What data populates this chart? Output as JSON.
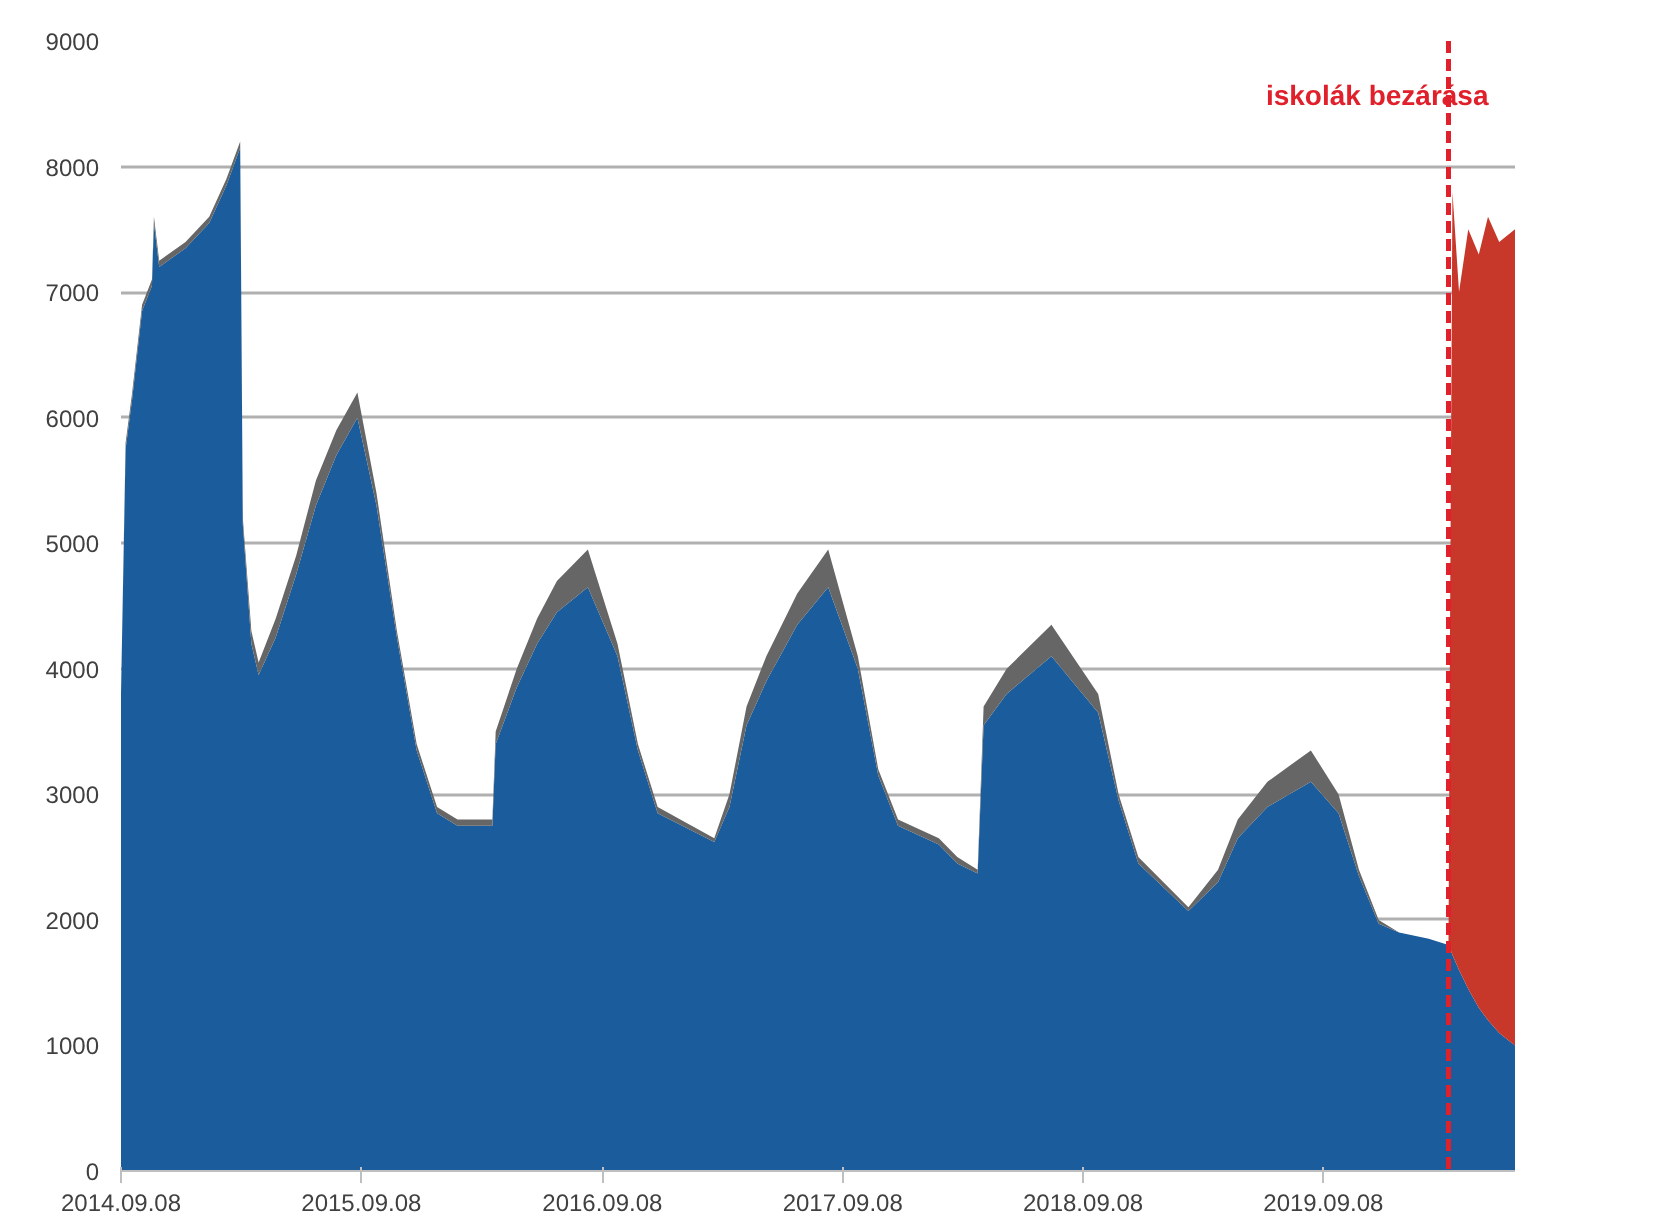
{
  "chart_data": {
    "type": "area",
    "stacked": true,
    "grid": "y",
    "x": [
      "2014-09-08",
      "2014-09-15",
      "2014-09-25",
      "2014-10-10",
      "2014-10-25",
      "2014-10-28",
      "2014-11-05",
      "2014-12-15",
      "2015-01-20",
      "2015-02-15",
      "2015-03-08",
      "2015-03-12",
      "2015-03-25",
      "2015-04-05",
      "2015-05-01",
      "2015-06-01",
      "2015-07-01",
      "2015-08-01",
      "2015-09-02",
      "2015-10-01",
      "2015-11-01",
      "2015-12-01",
      "2016-01-01",
      "2016-02-01",
      "2016-03-25",
      "2016-03-30",
      "2016-05-01",
      "2016-06-01",
      "2016-07-01",
      "2016-08-17",
      "2016-10-01",
      "2016-11-01",
      "2016-12-01",
      "2017-02-25",
      "2017-03-20",
      "2017-04-15",
      "2017-05-15",
      "2017-07-01",
      "2017-08-17",
      "2017-10-01",
      "2017-11-01",
      "2017-12-01",
      "2018-02-01",
      "2018-03-01",
      "2018-04-01",
      "2018-04-10",
      "2018-05-15",
      "2018-07-22",
      "2018-10-01",
      "2018-11-01",
      "2018-12-01",
      "2019-02-15",
      "2019-04-01",
      "2019-05-01",
      "2019-06-15",
      "2019-08-20",
      "2019-10-01",
      "2019-11-01",
      "2019-12-01",
      "2020-01-01",
      "2020-02-15",
      "2020-03-16",
      "2020-03-18",
      "2020-03-22",
      "2020-04-01",
      "2020-04-15",
      "2020-05-01",
      "2020-05-15",
      "2020-06-01",
      "2020-06-25"
    ],
    "series": [
      {
        "color": "#1a5c9c",
        "values": [
          3800,
          5750,
          6150,
          6850,
          7050,
          7550,
          7200,
          7350,
          7550,
          7850,
          8150,
          5150,
          4200,
          3950,
          4250,
          4750,
          5300,
          5700,
          6000,
          5300,
          4250,
          3350,
          2850,
          2750,
          2750,
          3400,
          3850,
          4200,
          4450,
          4650,
          4100,
          3350,
          2850,
          2620,
          2900,
          3550,
          3900,
          4350,
          4650,
          4000,
          3150,
          2750,
          2600,
          2450,
          2370,
          3550,
          3800,
          4100,
          3650,
          2950,
          2450,
          2070,
          2300,
          2650,
          2900,
          3100,
          2850,
          2350,
          1970,
          1900,
          1850,
          1800,
          1780,
          1720,
          1600,
          1450,
          1300,
          1200,
          1100,
          1000
        ]
      },
      {
        "color": "#666666",
        "values": [
          0,
          50,
          50,
          50,
          50,
          50,
          50,
          50,
          50,
          50,
          50,
          50,
          100,
          100,
          150,
          150,
          200,
          200,
          200,
          100,
          50,
          50,
          50,
          50,
          50,
          100,
          150,
          200,
          250,
          300,
          100,
          50,
          50,
          30,
          100,
          150,
          200,
          250,
          300,
          100,
          50,
          50,
          50,
          50,
          30,
          150,
          200,
          250,
          150,
          50,
          50,
          30,
          100,
          150,
          200,
          250,
          150,
          50,
          30,
          0,
          0,
          0,
          null,
          null,
          null,
          null,
          null,
          null,
          null,
          null
        ]
      },
      {
        "color": "#c8382a",
        "values": [
          null,
          null,
          null,
          null,
          null,
          null,
          null,
          null,
          null,
          null,
          null,
          null,
          null,
          null,
          null,
          null,
          null,
          null,
          null,
          null,
          null,
          null,
          null,
          null,
          null,
          null,
          null,
          null,
          null,
          null,
          null,
          null,
          null,
          null,
          null,
          null,
          null,
          null,
          null,
          null,
          null,
          null,
          null,
          null,
          null,
          null,
          null,
          null,
          null,
          null,
          null,
          null,
          null,
          null,
          null,
          null,
          null,
          null,
          null,
          null,
          null,
          0,
          2220,
          6080,
          5400,
          6050,
          6000,
          6400,
          6300,
          6500
        ]
      }
    ],
    "xlim": [
      "2014-09-08",
      "2020-06-25"
    ],
    "ylim": [
      0,
      9000
    ],
    "xticks": [
      {
        "value": "2014-09-08",
        "label": "2014.09.08"
      },
      {
        "value": "2015-09-08",
        "label": "2015.09.08"
      },
      {
        "value": "2016-09-08",
        "label": "2016.09.08"
      },
      {
        "value": "2017-09-08",
        "label": "2017.09.08"
      },
      {
        "value": "2018-09-08",
        "label": "2018.09.08"
      },
      {
        "value": "2019-09-08",
        "label": "2019.09.08"
      }
    ],
    "yticks": [
      0,
      1000,
      2000,
      3000,
      4000,
      5000,
      6000,
      7000,
      8000,
      9000
    ],
    "ref_lines": [
      {
        "axis": "x",
        "value": "2020-03-16",
        "label": "iskolák bezárása",
        "color": "#e0202a",
        "line_style": "dashed"
      }
    ]
  }
}
